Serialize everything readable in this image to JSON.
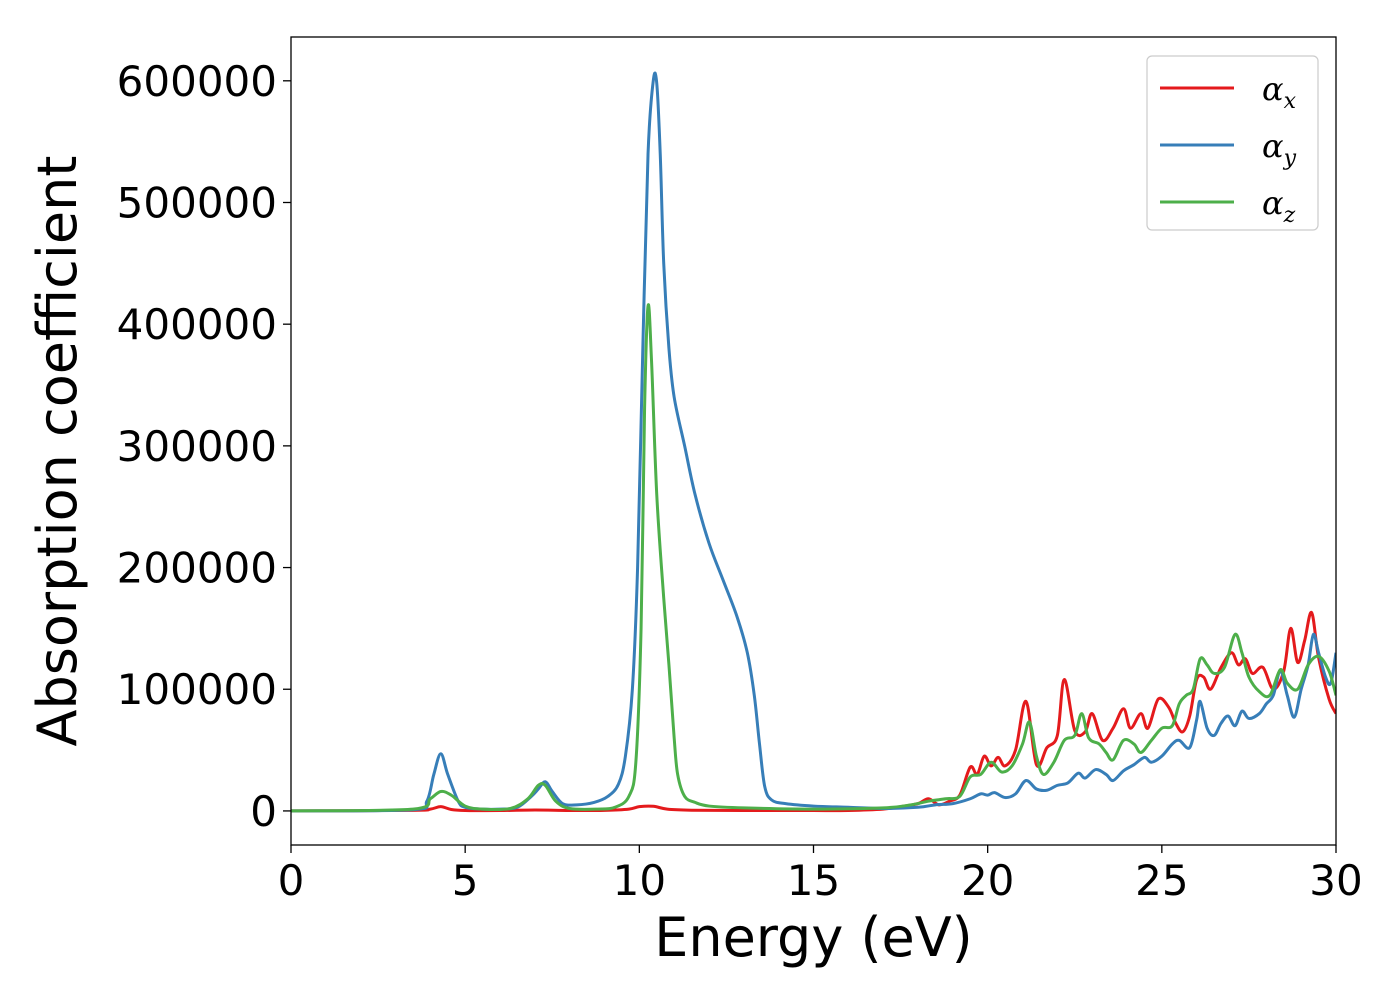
{
  "chart_data": {
    "type": "line",
    "xlabel": "Energy (eV)",
    "ylabel": "Absorption coefficient",
    "xlim": [
      0,
      30
    ],
    "ylim": [
      -28000,
      636000
    ],
    "xticks": [
      0,
      5,
      10,
      15,
      20,
      25,
      30
    ],
    "yticks": [
      0,
      100000,
      200000,
      300000,
      400000,
      500000,
      600000
    ],
    "grid": false,
    "legend_position": "top-right",
    "series": [
      {
        "name": "α",
        "subscript": "x",
        "color": "#e41a1c",
        "points": [
          [
            0,
            0
          ],
          [
            3.5,
            500
          ],
          [
            4.0,
            1500
          ],
          [
            4.3,
            3500
          ],
          [
            4.6,
            1200
          ],
          [
            5.0,
            400
          ],
          [
            6.0,
            300
          ],
          [
            7.0,
            800
          ],
          [
            8.0,
            400
          ],
          [
            9.0,
            500
          ],
          [
            9.7,
            1500
          ],
          [
            10.0,
            3500
          ],
          [
            10.4,
            3800
          ],
          [
            10.8,
            1500
          ],
          [
            11.5,
            600
          ],
          [
            13,
            400
          ],
          [
            15,
            300
          ],
          [
            16,
            400
          ],
          [
            17,
            1500
          ],
          [
            17.5,
            3500
          ],
          [
            18.0,
            6000
          ],
          [
            18.3,
            10000
          ],
          [
            18.6,
            5000
          ],
          [
            18.9,
            8000
          ],
          [
            19.2,
            13000
          ],
          [
            19.5,
            36000
          ],
          [
            19.7,
            30000
          ],
          [
            19.9,
            45000
          ],
          [
            20.1,
            37000
          ],
          [
            20.3,
            44000
          ],
          [
            20.5,
            37000
          ],
          [
            20.8,
            50000
          ],
          [
            21.1,
            90000
          ],
          [
            21.4,
            38000
          ],
          [
            21.7,
            52000
          ],
          [
            22.0,
            62000
          ],
          [
            22.2,
            108000
          ],
          [
            22.5,
            66000
          ],
          [
            22.8,
            65000
          ],
          [
            23.0,
            80000
          ],
          [
            23.3,
            58000
          ],
          [
            23.6,
            68000
          ],
          [
            23.9,
            84000
          ],
          [
            24.1,
            68000
          ],
          [
            24.4,
            80000
          ],
          [
            24.6,
            68000
          ],
          [
            24.9,
            92000
          ],
          [
            25.2,
            85000
          ],
          [
            25.4,
            72000
          ],
          [
            25.6,
            65000
          ],
          [
            25.8,
            78000
          ],
          [
            26.0,
            108000
          ],
          [
            26.2,
            110000
          ],
          [
            26.4,
            100000
          ],
          [
            26.7,
            118000
          ],
          [
            27.0,
            130000
          ],
          [
            27.2,
            120000
          ],
          [
            27.4,
            125000
          ],
          [
            27.6,
            113000
          ],
          [
            27.9,
            118000
          ],
          [
            28.2,
            100000
          ],
          [
            28.5,
            115000
          ],
          [
            28.7,
            150000
          ],
          [
            28.9,
            122000
          ],
          [
            29.1,
            140000
          ],
          [
            29.3,
            163000
          ],
          [
            29.5,
            126000
          ],
          [
            29.8,
            92000
          ],
          [
            30.0,
            80000
          ]
        ]
      },
      {
        "name": "α",
        "subscript": "y",
        "color": "#377eb8",
        "points": [
          [
            0,
            0
          ],
          [
            3.5,
            1000
          ],
          [
            3.9,
            8000
          ],
          [
            4.1,
            30000
          ],
          [
            4.3,
            47000
          ],
          [
            4.5,
            30000
          ],
          [
            4.8,
            8000
          ],
          [
            5.0,
            3000
          ],
          [
            5.5,
            1500
          ],
          [
            6.0,
            1500
          ],
          [
            6.5,
            3000
          ],
          [
            6.9,
            12000
          ],
          [
            7.1,
            18000
          ],
          [
            7.3,
            24000
          ],
          [
            7.5,
            16000
          ],
          [
            7.8,
            6000
          ],
          [
            8.2,
            5000
          ],
          [
            8.7,
            7000
          ],
          [
            9.1,
            12000
          ],
          [
            9.4,
            22000
          ],
          [
            9.6,
            45000
          ],
          [
            9.8,
            100000
          ],
          [
            9.95,
            200000
          ],
          [
            10.1,
            380000
          ],
          [
            10.25,
            540000
          ],
          [
            10.4,
            600000
          ],
          [
            10.5,
            598000
          ],
          [
            10.6,
            540000
          ],
          [
            10.7,
            450000
          ],
          [
            10.85,
            380000
          ],
          [
            11.0,
            340000
          ],
          [
            11.3,
            300000
          ],
          [
            11.6,
            260000
          ],
          [
            12.0,
            220000
          ],
          [
            12.4,
            190000
          ],
          [
            12.8,
            160000
          ],
          [
            13.1,
            130000
          ],
          [
            13.3,
            95000
          ],
          [
            13.45,
            55000
          ],
          [
            13.6,
            20000
          ],
          [
            13.8,
            9000
          ],
          [
            14.2,
            6000
          ],
          [
            15,
            4000
          ],
          [
            16,
            3000
          ],
          [
            17,
            2000
          ],
          [
            18,
            3000
          ],
          [
            18.5,
            5000
          ],
          [
            19,
            6000
          ],
          [
            19.5,
            10000
          ],
          [
            19.8,
            14000
          ],
          [
            20.0,
            13000
          ],
          [
            20.2,
            15000
          ],
          [
            20.5,
            11000
          ],
          [
            20.8,
            14000
          ],
          [
            21.1,
            25000
          ],
          [
            21.4,
            18000
          ],
          [
            21.7,
            17000
          ],
          [
            22.0,
            21000
          ],
          [
            22.3,
            23000
          ],
          [
            22.6,
            31000
          ],
          [
            22.8,
            27000
          ],
          [
            23.1,
            34000
          ],
          [
            23.4,
            30000
          ],
          [
            23.6,
            25000
          ],
          [
            23.9,
            33000
          ],
          [
            24.2,
            38000
          ],
          [
            24.5,
            44000
          ],
          [
            24.7,
            40000
          ],
          [
            25.0,
            45000
          ],
          [
            25.3,
            55000
          ],
          [
            25.5,
            58000
          ],
          [
            25.8,
            52000
          ],
          [
            26.0,
            75000
          ],
          [
            26.1,
            90000
          ],
          [
            26.3,
            68000
          ],
          [
            26.5,
            62000
          ],
          [
            26.7,
            72000
          ],
          [
            26.9,
            78000
          ],
          [
            27.1,
            70000
          ],
          [
            27.3,
            82000
          ],
          [
            27.5,
            76000
          ],
          [
            27.8,
            80000
          ],
          [
            28.0,
            88000
          ],
          [
            28.2,
            95000
          ],
          [
            28.4,
            115000
          ],
          [
            28.6,
            95000
          ],
          [
            28.8,
            77000
          ],
          [
            29.0,
            100000
          ],
          [
            29.2,
            120000
          ],
          [
            29.35,
            145000
          ],
          [
            29.5,
            130000
          ],
          [
            29.7,
            110000
          ],
          [
            29.85,
            105000
          ],
          [
            30.0,
            130000
          ]
        ]
      },
      {
        "name": "α",
        "subscript": "z",
        "color": "#4daf4a",
        "points": [
          [
            0,
            0
          ],
          [
            3.5,
            1500
          ],
          [
            4.0,
            10000
          ],
          [
            4.3,
            16000
          ],
          [
            4.6,
            13000
          ],
          [
            5.0,
            4000
          ],
          [
            5.5,
            1500
          ],
          [
            6.3,
            2000
          ],
          [
            6.8,
            10000
          ],
          [
            7.1,
            21000
          ],
          [
            7.3,
            21000
          ],
          [
            7.6,
            8000
          ],
          [
            8.0,
            2000
          ],
          [
            8.8,
            1500
          ],
          [
            9.3,
            3000
          ],
          [
            9.7,
            12000
          ],
          [
            9.9,
            40000
          ],
          [
            10.05,
            150000
          ],
          [
            10.15,
            330000
          ],
          [
            10.25,
            415000
          ],
          [
            10.35,
            370000
          ],
          [
            10.5,
            260000
          ],
          [
            10.7,
            175000
          ],
          [
            10.85,
            120000
          ],
          [
            11.0,
            60000
          ],
          [
            11.1,
            30000
          ],
          [
            11.3,
            12000
          ],
          [
            11.6,
            7000
          ],
          [
            12,
            4000
          ],
          [
            13,
            2500
          ],
          [
            15,
            1500
          ],
          [
            17,
            2500
          ],
          [
            17.8,
            5000
          ],
          [
            18.3,
            8000
          ],
          [
            18.8,
            10000
          ],
          [
            19.2,
            12000
          ],
          [
            19.5,
            28000
          ],
          [
            19.8,
            30000
          ],
          [
            20.1,
            40000
          ],
          [
            20.4,
            32000
          ],
          [
            20.7,
            37000
          ],
          [
            21.0,
            55000
          ],
          [
            21.2,
            73000
          ],
          [
            21.4,
            45000
          ],
          [
            21.6,
            30000
          ],
          [
            21.9,
            40000
          ],
          [
            22.2,
            58000
          ],
          [
            22.5,
            62000
          ],
          [
            22.7,
            80000
          ],
          [
            22.9,
            60000
          ],
          [
            23.2,
            55000
          ],
          [
            23.4,
            48000
          ],
          [
            23.6,
            42000
          ],
          [
            23.9,
            58000
          ],
          [
            24.2,
            55000
          ],
          [
            24.4,
            48000
          ],
          [
            24.7,
            58000
          ],
          [
            25.0,
            68000
          ],
          [
            25.3,
            70000
          ],
          [
            25.5,
            88000
          ],
          [
            25.7,
            95000
          ],
          [
            25.9,
            100000
          ],
          [
            26.1,
            125000
          ],
          [
            26.3,
            120000
          ],
          [
            26.5,
            113000
          ],
          [
            26.8,
            118000
          ],
          [
            27.1,
            145000
          ],
          [
            27.3,
            130000
          ],
          [
            27.5,
            110000
          ],
          [
            27.8,
            98000
          ],
          [
            28.1,
            95000
          ],
          [
            28.4,
            116000
          ],
          [
            28.6,
            105000
          ],
          [
            28.9,
            100000
          ],
          [
            29.2,
            120000
          ],
          [
            29.5,
            127000
          ],
          [
            29.8,
            115000
          ],
          [
            30.0,
            95000
          ]
        ]
      }
    ]
  }
}
